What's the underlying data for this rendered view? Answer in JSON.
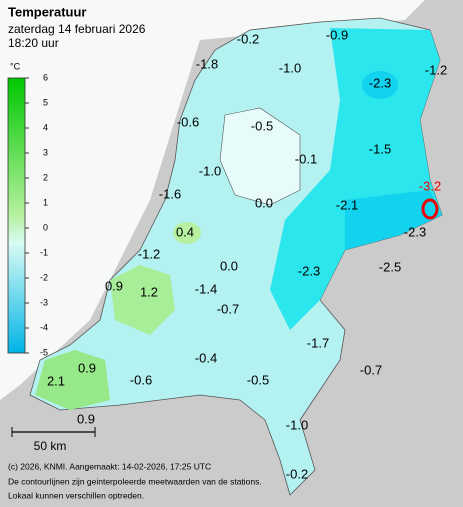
{
  "header": {
    "title": "Temperatuur",
    "date": "zaterdag 14 februari 2026",
    "time": "18:20 uur"
  },
  "legend": {
    "unit": "°C",
    "ticks": [
      "6",
      "5",
      "4",
      "3",
      "2",
      "1",
      "0",
      "-1",
      "-2",
      "-3",
      "-4",
      "-5"
    ]
  },
  "map": {
    "labels": [
      "-0.2",
      "-0.9",
      "-1.8",
      "-1.0",
      "-2.3",
      "-1.2",
      "-0.6",
      "-0.5",
      "-0.1",
      "-1.5",
      "-1.0",
      "-1.6",
      "0.0",
      "-2.1",
      "0.4",
      "-2.3",
      "-1.2",
      "0.0",
      "-2.3",
      "-2.5",
      "0.9",
      "1.2",
      "-1.4",
      "-0.7",
      "-1.7",
      "-0.4",
      "-0.7",
      "0.9",
      "2.1",
      "-0.6",
      "-0.5",
      "-1.0",
      "0.9",
      "-0.2"
    ],
    "highlight": "-3.2"
  },
  "scale": "50 km",
  "footer": [
    "(c) 2026, KNMI. Aangemaakt: 14-02-2026, 17:25 UTC",
    "De contourlijnen zijn geinterpoleerde meetwaarden van de stations.",
    "Lokaal kunnen verschillen optreden."
  ]
}
